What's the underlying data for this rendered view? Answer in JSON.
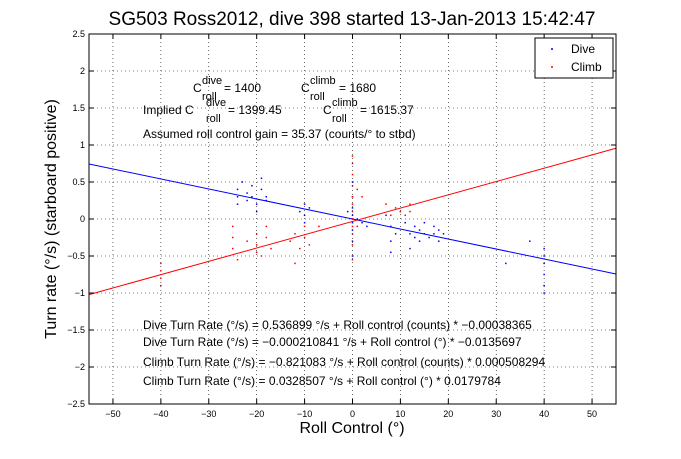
{
  "chart_data": {
    "type": "scatter",
    "title": "SG503 Ross2012, dive 398 started 13-Jan-2013 15:42:47",
    "xlabel": "Roll Control (°)",
    "ylabel": "Turn rate (°/s) (starboard positive)",
    "xlim": [
      -55,
      55
    ],
    "ylim": [
      -2.5,
      2.5
    ],
    "xticks": [
      -50,
      -40,
      -30,
      -20,
      -10,
      0,
      10,
      20,
      30,
      40,
      50
    ],
    "yticks": [
      -2.5,
      -2,
      -1.5,
      -1,
      -0.5,
      0,
      0.5,
      1,
      1.5,
      2,
      2.5
    ],
    "xtick_labels": [
      "−50",
      "−40",
      "−30",
      "−20",
      "−10",
      "0",
      "10",
      "20",
      "30",
      "40",
      "50"
    ],
    "ytick_labels": [
      "−2.5",
      "−2",
      "−1.5",
      "−1",
      "−0.5",
      "0",
      "0.5",
      "1",
      "1.5",
      "2",
      "2.5"
    ],
    "grid": true,
    "legend_position": "top-right",
    "legend": [
      {
        "label": "Dive",
        "color": "#0000ff"
      },
      {
        "label": "Climb",
        "color": "#ff0000"
      }
    ],
    "series": [
      {
        "name": "Dive",
        "color": "#0000ff",
        "points": [
          [
            -24,
            0.4
          ],
          [
            -24,
            0.3
          ],
          [
            -24,
            0.2
          ],
          [
            -23,
            0.5
          ],
          [
            -22,
            0.35
          ],
          [
            -22,
            0.25
          ],
          [
            -21,
            0.45
          ],
          [
            -21,
            0.3
          ],
          [
            -20,
            0.2
          ],
          [
            -20,
            0.1
          ],
          [
            -19,
            0.55
          ],
          [
            -19,
            0.4
          ],
          [
            -18,
            0.3
          ],
          [
            -18,
            0.25
          ],
          [
            -11,
            0.1
          ],
          [
            -10,
            0.2
          ],
          [
            -10,
            0.05
          ],
          [
            -10,
            -0.05
          ],
          [
            -9,
            0.15
          ],
          [
            -1,
            0.1
          ],
          [
            0,
            0.5
          ],
          [
            0,
            0.3
          ],
          [
            0,
            0.15
          ],
          [
            0,
            0.05
          ],
          [
            0,
            0.0
          ],
          [
            0,
            -0.05
          ],
          [
            0,
            -0.15
          ],
          [
            0,
            -0.3
          ],
          [
            0,
            -0.5
          ],
          [
            1,
            0.0
          ],
          [
            2,
            -0.05
          ],
          [
            3,
            -0.1
          ],
          [
            7,
            0.05
          ],
          [
            8,
            -0.1
          ],
          [
            8,
            -0.3
          ],
          [
            8,
            -0.45
          ],
          [
            9,
            -0.2
          ],
          [
            11,
            -0.05
          ],
          [
            12,
            -0.2
          ],
          [
            12,
            -0.4
          ],
          [
            13,
            -0.1
          ],
          [
            13,
            -0.25
          ],
          [
            14,
            -0.15
          ],
          [
            14,
            -0.3
          ],
          [
            15,
            -0.2
          ],
          [
            15,
            -0.05
          ],
          [
            16,
            -0.25
          ],
          [
            17,
            -0.1
          ],
          [
            17,
            -0.2
          ],
          [
            18,
            -0.3
          ],
          [
            18,
            -0.15
          ],
          [
            19,
            -0.2
          ],
          [
            32,
            -0.6
          ],
          [
            37,
            -0.3
          ],
          [
            40,
            -0.4
          ],
          [
            40,
            -0.5
          ],
          [
            40,
            -0.6
          ],
          [
            40,
            -0.75
          ],
          [
            40,
            -0.9
          ],
          [
            40,
            -1.0
          ]
        ]
      },
      {
        "name": "Climb",
        "color": "#ff0000",
        "points": [
          [
            -40,
            -0.6
          ],
          [
            -40,
            -0.7
          ],
          [
            -40,
            -0.8
          ],
          [
            -40,
            -0.9
          ],
          [
            -25,
            -0.1
          ],
          [
            -25,
            -0.25
          ],
          [
            -25,
            -0.4
          ],
          [
            -24,
            -0.55
          ],
          [
            -22,
            -0.3
          ],
          [
            -20,
            -0.2
          ],
          [
            -20,
            -0.35
          ],
          [
            -20,
            -0.45
          ],
          [
            -19,
            -0.5
          ],
          [
            -18,
            -0.25
          ],
          [
            -18,
            -0.1
          ],
          [
            -17,
            -0.4
          ],
          [
            -13,
            -0.3
          ],
          [
            -12,
            -0.2
          ],
          [
            -12,
            -0.6
          ],
          [
            -11,
            -0.4
          ],
          [
            -10,
            -0.1
          ],
          [
            -10,
            -0.25
          ],
          [
            -9,
            -0.35
          ],
          [
            -7,
            -0.1
          ],
          [
            0,
            0.85
          ],
          [
            0,
            0.75
          ],
          [
            0,
            0.6
          ],
          [
            0,
            0.45
          ],
          [
            0,
            0.3
          ],
          [
            0,
            0.2
          ],
          [
            0,
            0.1
          ],
          [
            0,
            0.0
          ],
          [
            0,
            -0.1
          ],
          [
            0,
            -0.2
          ],
          [
            0,
            -0.35
          ],
          [
            0,
            -0.55
          ],
          [
            1,
            0.4
          ],
          [
            1,
            -0.1
          ],
          [
            2,
            0.3
          ],
          [
            7,
            0.2
          ],
          [
            8,
            0.05
          ],
          [
            9,
            0.15
          ],
          [
            10,
            0.1
          ],
          [
            11,
            0.05
          ],
          [
            12,
            0.1
          ],
          [
            12,
            0.2
          ]
        ]
      }
    ],
    "fit_lines": [
      {
        "name": "Dive fit",
        "color": "#0000ff",
        "x": [
          -55,
          55
        ],
        "y": [
          0.7436,
          -0.7436
        ]
      },
      {
        "name": "Climb fit",
        "color": "#ff0000",
        "x": [
          -55,
          55
        ],
        "y": [
          -1.0217,
          0.9561
        ]
      }
    ],
    "annotations": {
      "c_dive_label": "C",
      "c_dive_sup": "dive",
      "c_dive_sub": "roll",
      "c_dive_value": " = 1400",
      "c_climb_label": "C",
      "c_climb_sup": "climb",
      "c_climb_sub": "roll",
      "c_climb_value": " = 1680",
      "implied_prefix": "Implied C",
      "implied_dive_sup": "dive",
      "implied_dive_sub": "roll",
      "implied_dive_value": " = 1399.45",
      "implied_climb_label": "C",
      "implied_climb_sup": "climb",
      "implied_climb_sub": "roll",
      "implied_climb_value": " = 1615.37",
      "gain_text": "Assumed roll control gain = 35.37 (counts/° to stbd)",
      "eq1": "Dive Turn Rate (°/s) = 0.536899 °/s + Roll control (counts) * −0.00038365",
      "eq2": "Dive Turn Rate (°/s) = −0.000210841 °/s + Roll control (°) * −0.0135697",
      "eq3": "Climb Turn Rate (°/s) = −0.821083 °/s + Roll control (counts) * 0.000508294",
      "eq4": "Climb Turn Rate (°/s) = 0.0328507 °/s + Roll control (°) * 0.0179784"
    }
  }
}
